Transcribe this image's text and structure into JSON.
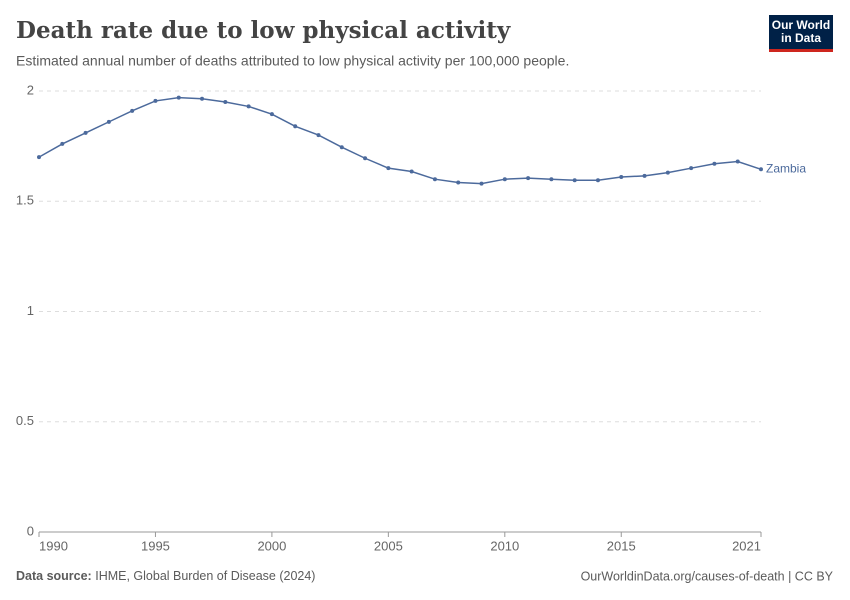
{
  "chart_data": {
    "type": "line",
    "title": "Death rate due to low physical activity",
    "subtitle": "Estimated annual number of deaths attributed to low physical activity per 100,000 people.",
    "logo": [
      "Our World",
      "in Data"
    ],
    "source_label": "Data source:",
    "source": "IHME, Global Burden of Disease (2024)",
    "url": "OurWorldinData.org/causes-of-death | CC BY",
    "x": [
      1990,
      1991,
      1992,
      1993,
      1994,
      1995,
      1996,
      1997,
      1998,
      1999,
      2000,
      2001,
      2002,
      2003,
      2004,
      2005,
      2006,
      2007,
      2008,
      2009,
      2010,
      2011,
      2012,
      2013,
      2014,
      2015,
      2016,
      2017,
      2018,
      2019,
      2020,
      2021
    ],
    "series": [
      {
        "name": "Zambia",
        "color": "#4c6a9c",
        "values": [
          1.7,
          1.76,
          1.81,
          1.86,
          1.91,
          1.955,
          1.97,
          1.965,
          1.95,
          1.93,
          1.895,
          1.84,
          1.8,
          1.745,
          1.695,
          1.65,
          1.635,
          1.6,
          1.585,
          1.58,
          1.6,
          1.605,
          1.6,
          1.595,
          1.595,
          1.61,
          1.615,
          1.63,
          1.65,
          1.67,
          1.68,
          1.645
        ]
      }
    ],
    "xlim": [
      1990,
      2021
    ],
    "xticks": [
      1990,
      1995,
      2000,
      2005,
      2010,
      2015,
      2021
    ],
    "ylim": [
      0,
      2
    ],
    "yticks": [
      0,
      0.5,
      1,
      1.5,
      2
    ],
    "grid": true
  }
}
